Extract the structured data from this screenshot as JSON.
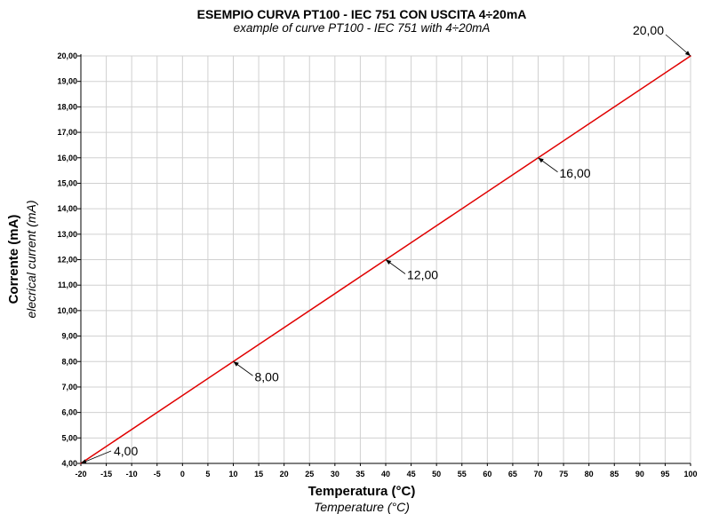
{
  "chart_data": {
    "type": "line",
    "title": "ESEMPIO CURVA PT100 - IEC 751 CON USCITA 4÷20mA",
    "subtitle": "example of curve PT100 - IEC 751 with 4÷20mA",
    "xlabel": "Temperatura (°C)",
    "xlabel_sub": "Temperature (°C)",
    "ylabel": "Corrente (mA)",
    "ylabel_sub": "elecrical current (mA)",
    "xlim": [
      -20,
      100
    ],
    "ylim": [
      4,
      20
    ],
    "x_ticks": [
      -20,
      -15,
      -10,
      -5,
      0,
      5,
      10,
      15,
      20,
      25,
      30,
      35,
      40,
      45,
      50,
      55,
      60,
      65,
      70,
      75,
      80,
      85,
      90,
      95,
      100
    ],
    "x_tick_labels": [
      "-20",
      "-15",
      "-10",
      "-5",
      "0",
      "5",
      "10",
      "15",
      "20",
      "25",
      "30",
      "35",
      "40",
      "45",
      "50",
      "55",
      "60",
      "65",
      "70",
      "75",
      "80",
      "85",
      "90",
      "95",
      "100"
    ],
    "y_ticks": [
      4,
      5,
      6,
      7,
      8,
      9,
      10,
      11,
      12,
      13,
      14,
      15,
      16,
      17,
      18,
      19,
      20
    ],
    "y_tick_labels": [
      "4,00",
      "5,00",
      "6,00",
      "7,00",
      "8,00",
      "9,00",
      "10,00",
      "11,00",
      "12,00",
      "13,00",
      "14,00",
      "15,00",
      "16,00",
      "17,00",
      "18,00",
      "19,00",
      "20,00"
    ],
    "grid": true,
    "line_color": "#e00000",
    "grid_color": "#d0d0d0",
    "series": [
      {
        "x": [
          -20,
          10,
          40,
          70,
          100
        ],
        "y": [
          4,
          8,
          12,
          16,
          20
        ]
      }
    ],
    "annotations": [
      {
        "x": -20,
        "y": 4,
        "label": "4,00",
        "side": "right-up"
      },
      {
        "x": 10,
        "y": 8,
        "label": "8,00",
        "side": "right-down"
      },
      {
        "x": 40,
        "y": 12,
        "label": "12,00",
        "side": "right-down"
      },
      {
        "x": 70,
        "y": 16,
        "label": "16,00",
        "side": "right-down"
      },
      {
        "x": 100,
        "y": 20,
        "label": "20,00",
        "side": "left-up"
      }
    ]
  }
}
